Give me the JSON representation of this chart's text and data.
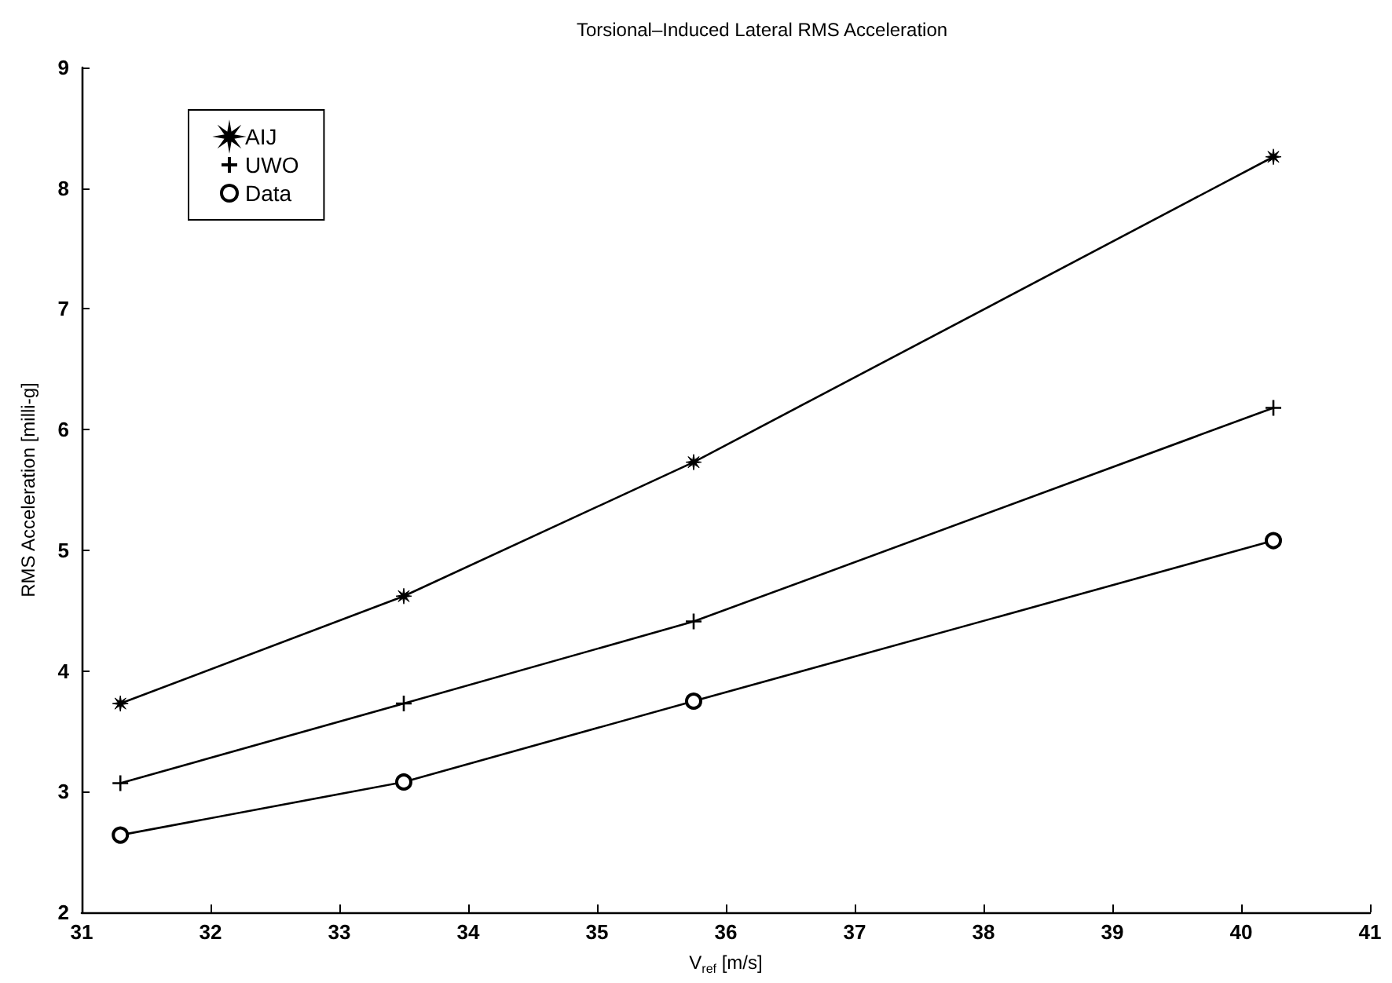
{
  "chart_data": {
    "type": "line",
    "title": "Torsional–Induced Lateral RMS Acceleration",
    "xlabel": "V$_{ref}$ [m/s]",
    "ylabel": "RMS Acceleration [milli-g]",
    "x": [
      31.3,
      33.5,
      35.75,
      40.25
    ],
    "series": [
      {
        "name": "AIJ",
        "color": "#000000",
        "marker": "star",
        "values": [
          3.73,
          4.62,
          5.73,
          8.26
        ]
      },
      {
        "name": "UWO",
        "color": "#000000",
        "marker": "cross",
        "values": [
          3.07,
          3.73,
          4.41,
          6.18
        ]
      },
      {
        "name": "Data",
        "color": "#000000",
        "marker": "circle",
        "values": [
          2.64,
          3.08,
          3.75,
          5.08
        ]
      }
    ],
    "xlim": [
      31,
      41
    ],
    "xticks": [
      31,
      32,
      33,
      34,
      35,
      36,
      37,
      38,
      39,
      40,
      41
    ],
    "ylim": [
      2,
      9
    ],
    "yticks": [
      2,
      3,
      4,
      5,
      6,
      7,
      8,
      9
    ],
    "grid": false,
    "legend": "top left",
    "line_style": "solid"
  }
}
